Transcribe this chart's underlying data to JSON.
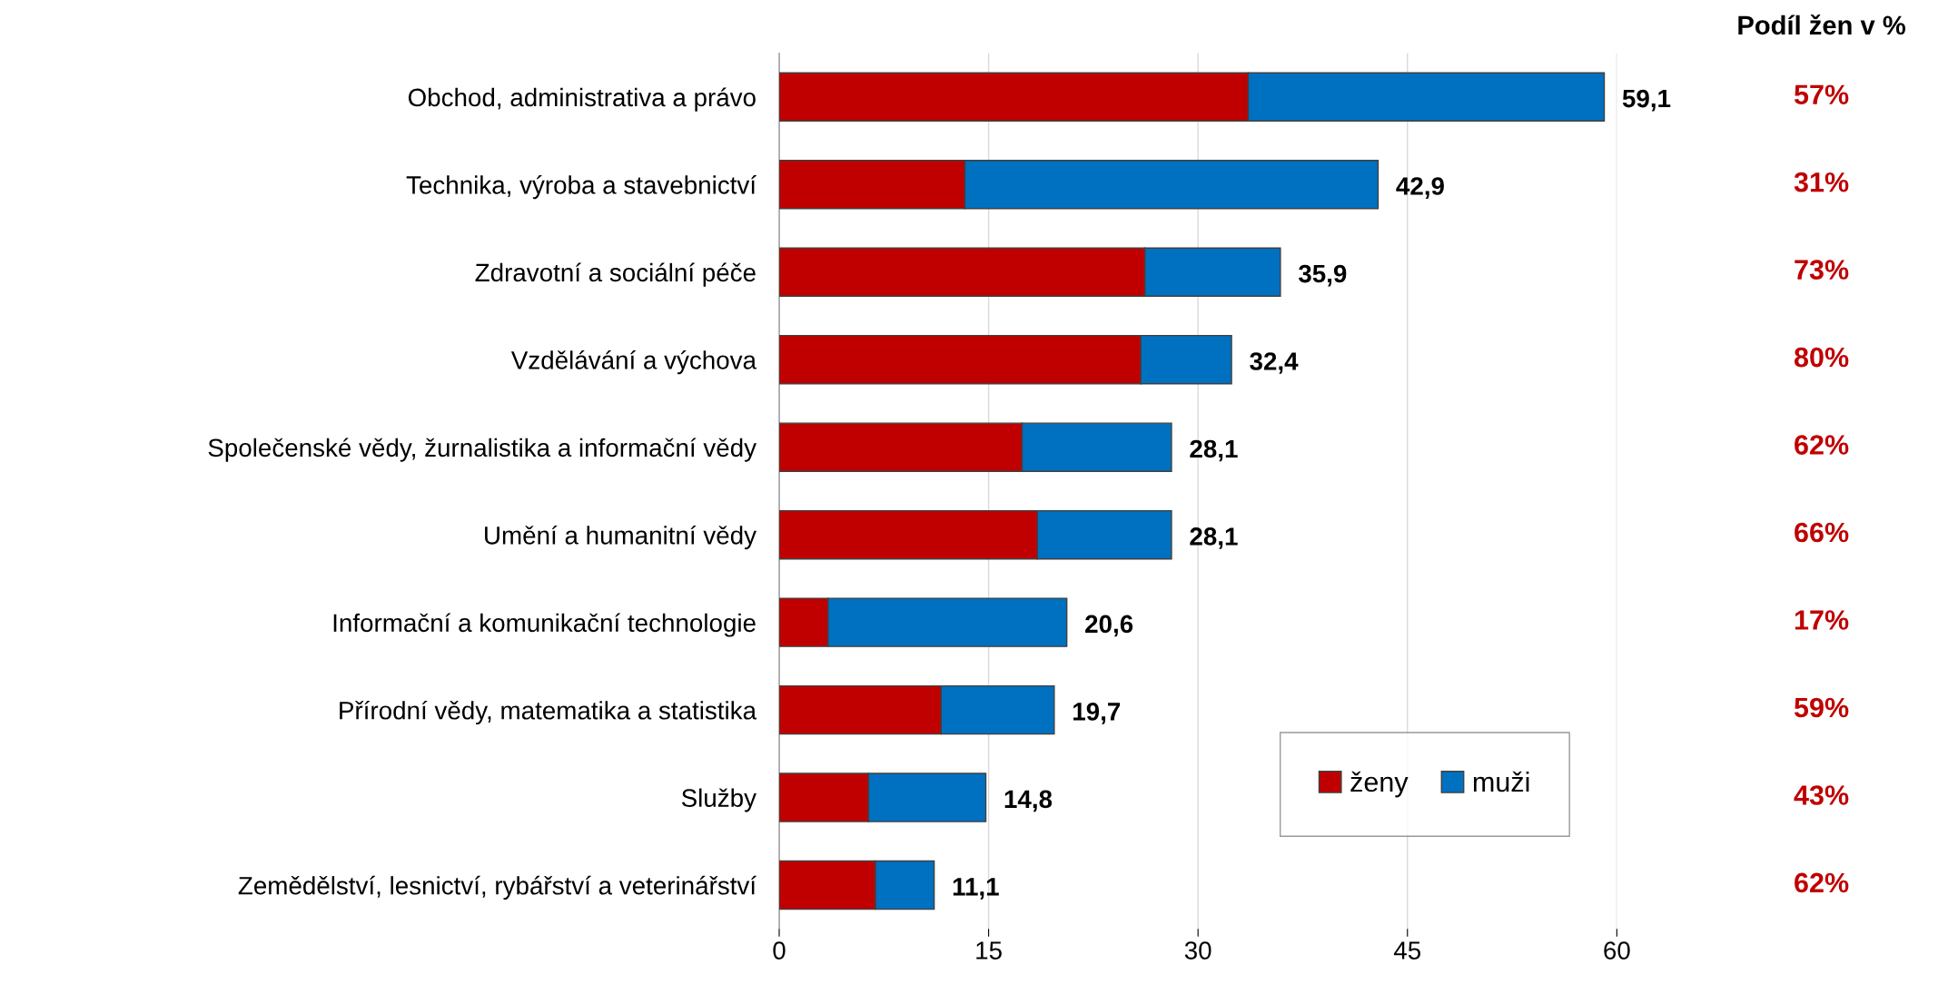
{
  "chart_data": {
    "type": "bar",
    "orientation": "horizontal",
    "stacked": true,
    "categories": [
      "Obchod, administrativa a právo",
      "Technika, výroba a stavebnictví",
      "Zdravotní a sociální péče",
      "Vzdělávání a výchova",
      "Společenské vědy, žurnalistika a informační vědy",
      "Umění a humanitní vědy",
      "Informační a komunikační technologie",
      "Přírodní vědy, matematika a statistika",
      "Služby",
      "Zemědělství, lesnictví, rybářství a veterinářství"
    ],
    "series": [
      {
        "name": "ženy",
        "color": "#c00000",
        "values": [
          33.6,
          13.3,
          26.2,
          25.9,
          17.4,
          18.5,
          3.5,
          11.6,
          6.4,
          6.9
        ]
      },
      {
        "name": "muži",
        "color": "#0070c0",
        "values": [
          25.5,
          29.6,
          9.7,
          6.5,
          10.7,
          9.6,
          17.1,
          8.1,
          8.4,
          4.2
        ]
      }
    ],
    "totals": [
      "59,1",
      "42,9",
      "35,9",
      "32,4",
      "28,1",
      "28,1",
      "20,6",
      "19,7",
      "14,8",
      "11,1"
    ],
    "xlim": [
      0,
      60
    ],
    "xticks": [
      0,
      15,
      30,
      45,
      60
    ],
    "grid": "x",
    "legend": "bottom right",
    "annotations": [
      "Podíl žen v %",
      "57%",
      "31%",
      "73%",
      "80%",
      "62%",
      "66%",
      "17%",
      "59%",
      "43%",
      "62%"
    ]
  }
}
